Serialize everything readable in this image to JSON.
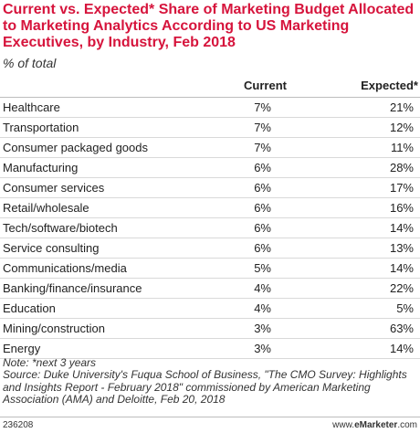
{
  "title": "Current vs. Expected* Share of Marketing Budget Allocated to Marketing Analytics According to US Marketing Executives, by Industry, Feb 2018",
  "subtitle": "% of total",
  "columns": {
    "current": "Current",
    "expected": "Expected*"
  },
  "notes": {
    "note": "Note: *next 3 years",
    "source": "Source: Duke University's Fuqua School of Business, \"The CMO Survey: Highlights and Insights Report - February 2018\" commissioned by American Marketing Association (AMA) and Deloitte, Feb 20, 2018"
  },
  "footer": {
    "id": "236208",
    "brand_prefix": "www.",
    "brand_bold": "eMarketer",
    "brand_suffix": ".com"
  },
  "chart_data": {
    "type": "table",
    "title": "Current vs. Expected* Share of Marketing Budget Allocated to Marketing Analytics According to US Marketing Executives, by Industry, Feb 2018",
    "subtitle": "% of total",
    "columns": [
      "Current",
      "Expected*"
    ],
    "rows": [
      {
        "label": "Healthcare",
        "current": "7%",
        "expected": "21%"
      },
      {
        "label": "Transportation",
        "current": "7%",
        "expected": "12%"
      },
      {
        "label": "Consumer packaged goods",
        "current": "7%",
        "expected": "11%"
      },
      {
        "label": "Manufacturing",
        "current": "6%",
        "expected": "28%"
      },
      {
        "label": "Consumer services",
        "current": "6%",
        "expected": "17%"
      },
      {
        "label": "Retail/wholesale",
        "current": "6%",
        "expected": "16%"
      },
      {
        "label": "Tech/software/biotech",
        "current": "6%",
        "expected": "14%"
      },
      {
        "label": "Service consulting",
        "current": "6%",
        "expected": "13%"
      },
      {
        "label": "Communications/media",
        "current": "5%",
        "expected": "14%"
      },
      {
        "label": "Banking/finance/insurance",
        "current": "4%",
        "expected": "22%"
      },
      {
        "label": "Education",
        "current": "4%",
        "expected": "5%"
      },
      {
        "label": "Mining/construction",
        "current": "3%",
        "expected": "63%"
      },
      {
        "label": "Energy",
        "current": "3%",
        "expected": "14%"
      }
    ]
  }
}
